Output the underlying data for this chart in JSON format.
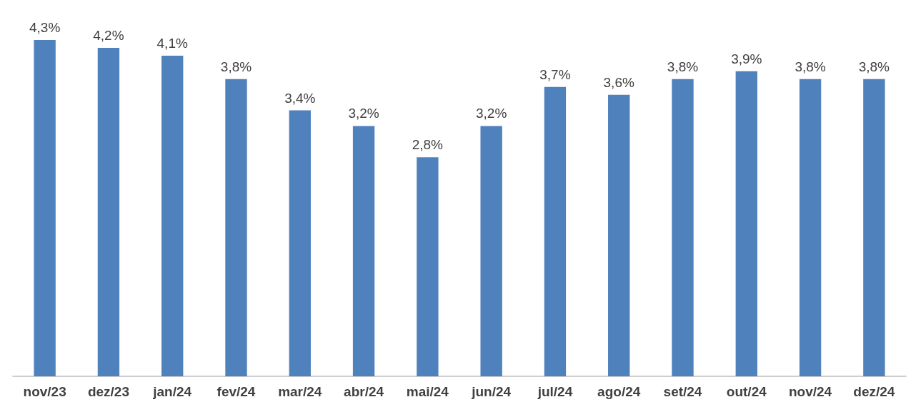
{
  "chart_data": {
    "type": "bar",
    "categories": [
      "nov/23",
      "dez/23",
      "jan/24",
      "fev/24",
      "mar/24",
      "abr/24",
      "mai/24",
      "jun/24",
      "jul/24",
      "ago/24",
      "set/24",
      "out/24",
      "nov/24",
      "dez/24"
    ],
    "values": [
      4.3,
      4.2,
      4.1,
      3.8,
      3.4,
      3.2,
      2.8,
      3.2,
      3.7,
      3.6,
      3.8,
      3.9,
      3.8,
      3.8
    ],
    "value_labels": [
      "4,3%",
      "4,2%",
      "4,1%",
      "3,8%",
      "3,4%",
      "3,2%",
      "2,8%",
      "3,2%",
      "3,7%",
      "3,6%",
      "3,8%",
      "3,9%",
      "3,8%",
      "3,8%"
    ],
    "color": "#4f81bd",
    "grid": false
  }
}
